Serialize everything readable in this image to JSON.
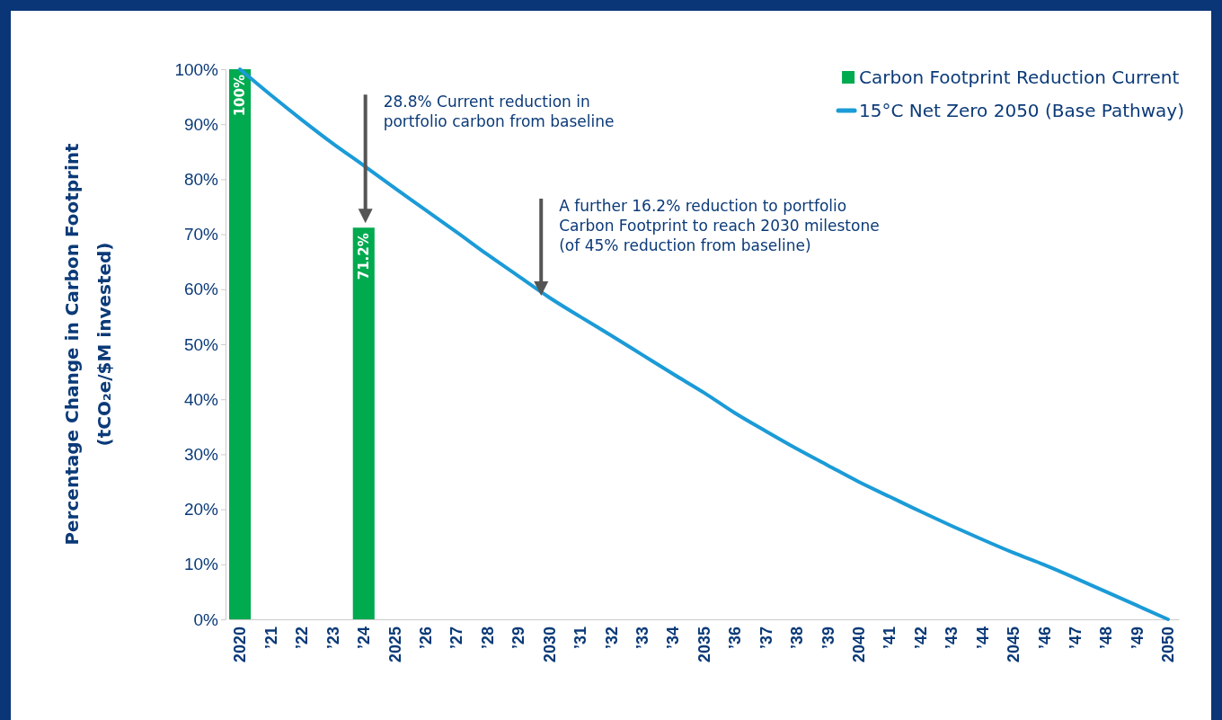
{
  "chart_data": {
    "type": "bar",
    "ylabel": "Percentage Change in Carbon Footprint\n(tCO₂e/$M invested)",
    "categories": [
      "2020",
      "’21",
      "’22",
      "’23",
      "’24",
      "2025",
      "’26",
      "’27",
      "’28",
      "’29",
      "2030",
      "’31",
      "’32",
      "’33",
      "’34",
      "2035",
      "’36",
      "’37",
      "’38",
      "’39",
      "2040",
      "’41",
      "’42",
      "’43",
      "’44",
      "2045",
      "’46",
      "’47",
      "’48",
      "’49",
      "2050"
    ],
    "series": [
      {
        "name": "Carbon Footprint Reduction Current",
        "color": "#00aa4f",
        "values": [
          100,
          null,
          null,
          null,
          71.2,
          null,
          null,
          null,
          null,
          null,
          null,
          null,
          null,
          null,
          null,
          null,
          null,
          null,
          null,
          null,
          null,
          null,
          null,
          null,
          null,
          null,
          null,
          null,
          null,
          null,
          null
        ],
        "value_labels": [
          "100%",
          null,
          null,
          null,
          "71.2%",
          null,
          null,
          null,
          null,
          null,
          null,
          null,
          null,
          null,
          null,
          null,
          null,
          null,
          null,
          null,
          null,
          null,
          null,
          null,
          null,
          null,
          null,
          null,
          null,
          null,
          null
        ]
      },
      {
        "name": "15°C Net Zero 2050 (Base Pathway)",
        "type": "line",
        "color": "#1b9bd7",
        "values": [
          100,
          95.3,
          90.8,
          86.5,
          82.5,
          78.4,
          74.4,
          70.4,
          66.3,
          62.4,
          58.5,
          55.0,
          51.6,
          48.1,
          44.6,
          41.2,
          37.5,
          34.2,
          31.0,
          28.0,
          25.0,
          22.3,
          19.6,
          17.0,
          14.5,
          12.1,
          9.9,
          7.5,
          5.0,
          2.5,
          0
        ]
      }
    ],
    "ylim": [
      0,
      100
    ],
    "yticks": [
      {
        "value": 0,
        "label": "0%"
      },
      {
        "value": 10,
        "label": "10%"
      },
      {
        "value": 20,
        "label": "20%"
      },
      {
        "value": 30,
        "label": "30%"
      },
      {
        "value": 40,
        "label": "40%"
      },
      {
        "value": 50,
        "label": "50%"
      },
      {
        "value": 60,
        "label": "60%"
      },
      {
        "value": 70,
        "label": "70%"
      },
      {
        "value": 80,
        "label": "80%"
      },
      {
        "value": 90,
        "label": "90%"
      },
      {
        "value": 100,
        "label": "100%"
      }
    ],
    "legend": "top right",
    "annotations": [
      "28.8% Current reduction in portfolio carbon from baseline",
      "A further 16.2% reduction to portfolio Carbon Footprint to reach 2030 milestone (of 45% reduction from baseline)"
    ]
  }
}
